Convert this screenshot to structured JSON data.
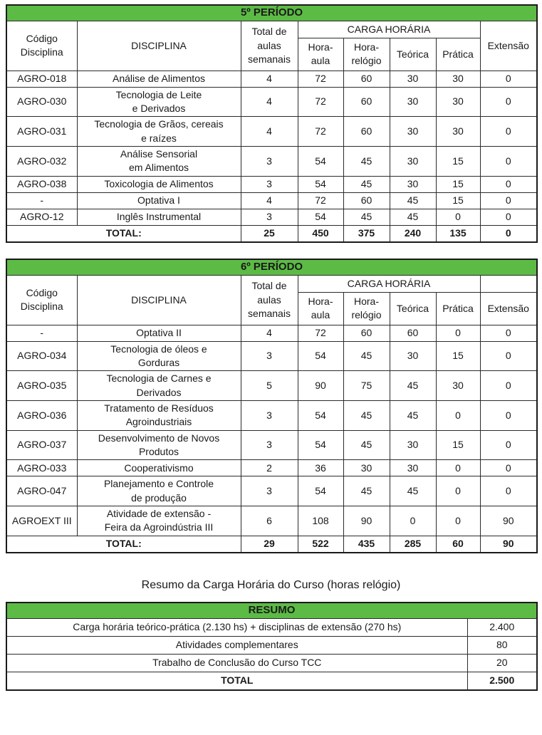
{
  "colors": {
    "header_green": "#5cbb45",
    "border": "#1a1a1a",
    "text": "#1a1a1a"
  },
  "period5": {
    "title": "5º PERÍODO",
    "header": {
      "code": "Código\nDisciplina",
      "discipline": "DISCIPLINA",
      "weekly": "Total de\naulas\nsemanais",
      "carga": "CARGA HORÁRIA",
      "sub": [
        "Hora-\naula",
        "Hora-\nrelógio",
        "Teórica",
        "Prática"
      ],
      "extensao": "Extensão"
    },
    "rows": [
      {
        "code": "AGRO-018",
        "discipline": "Análise de Alimentos",
        "values": [
          "4",
          "72",
          "60",
          "30",
          "30",
          "0"
        ]
      },
      {
        "code": "AGRO-030",
        "discipline": "Tecnologia de Leite\ne Derivados",
        "values": [
          "4",
          "72",
          "60",
          "30",
          "30",
          "0"
        ]
      },
      {
        "code": "AGRO-031",
        "discipline": "Tecnologia de Grãos, cereais\ne raízes",
        "values": [
          "4",
          "72",
          "60",
          "30",
          "30",
          "0"
        ]
      },
      {
        "code": "AGRO-032",
        "discipline": "Análise Sensorial\nem Alimentos",
        "values": [
          "3",
          "54",
          "45",
          "30",
          "15",
          "0"
        ]
      },
      {
        "code": "AGRO-038",
        "discipline": "Toxicologia de Alimentos",
        "values": [
          "3",
          "54",
          "45",
          "30",
          "15",
          "0"
        ]
      },
      {
        "code": "-",
        "discipline": "Optativa I",
        "values": [
          "4",
          "72",
          "60",
          "45",
          "15",
          "0"
        ]
      },
      {
        "code": "AGRO-12",
        "discipline": "Inglês Instrumental",
        "values": [
          "3",
          "54",
          "45",
          "45",
          "0",
          "0"
        ]
      }
    ],
    "total": {
      "label": "TOTAL:",
      "values": [
        "25",
        "450",
        "375",
        "240",
        "135",
        "0"
      ]
    }
  },
  "period6": {
    "title": "6º PERÍODO",
    "header": {
      "code": "Código\nDisciplina",
      "discipline": "DISCIPLINA",
      "weekly": "Total de\naulas\nsemanais",
      "carga": "CARGA HORÁRIA",
      "sub": [
        "Hora-\naula",
        "Hora-\nrelógio",
        "Teórica",
        "Prática"
      ],
      "extensao": "Extensão"
    },
    "rows": [
      {
        "code": "-",
        "discipline": "Optativa II",
        "values": [
          "4",
          "72",
          "60",
          "60",
          "0",
          "0"
        ]
      },
      {
        "code": "AGRO-034",
        "discipline": "Tecnologia de óleos e\nGorduras",
        "values": [
          "3",
          "54",
          "45",
          "30",
          "15",
          "0"
        ]
      },
      {
        "code": "AGRO-035",
        "discipline": "Tecnologia de Carnes e\nDerivados",
        "values": [
          "5",
          "90",
          "75",
          "45",
          "30",
          "0"
        ]
      },
      {
        "code": "AGRO-036",
        "discipline": "Tratamento de Resíduos\nAgroindustriais",
        "values": [
          "3",
          "54",
          "45",
          "45",
          "0",
          "0"
        ]
      },
      {
        "code": "AGRO-037",
        "discipline": "Desenvolvimento de Novos\nProdutos",
        "values": [
          "3",
          "54",
          "45",
          "30",
          "15",
          "0"
        ]
      },
      {
        "code": "AGRO-033",
        "discipline": "Cooperativismo",
        "values": [
          "2",
          "36",
          "30",
          "30",
          "0",
          "0"
        ]
      },
      {
        "code": "AGRO-047",
        "discipline": "Planejamento e Controle\nde produção",
        "values": [
          "3",
          "54",
          "45",
          "45",
          "0",
          "0"
        ]
      },
      {
        "code": "AGROEXT III",
        "discipline": "Atividade de extensão -\nFeira da Agroindústria III",
        "values": [
          "6",
          "108",
          "90",
          "0",
          "0",
          "90"
        ]
      }
    ],
    "total": {
      "label": "TOTAL:",
      "values": [
        "29",
        "522",
        "435",
        "285",
        "60",
        "90"
      ]
    }
  },
  "summary": {
    "caption": "Resumo da Carga Horária do Curso (horas relógio)",
    "title": "RESUMO",
    "rows": [
      {
        "label": "Carga horária teórico-prática (2.130 hs) + disciplinas de extensão (270 hs)",
        "value": "2.400"
      },
      {
        "label": "Atividades complementares",
        "value": "80"
      },
      {
        "label": "Trabalho de Conclusão do Curso TCC",
        "value": "20"
      }
    ],
    "total": {
      "label": "TOTAL",
      "value": "2.500"
    }
  }
}
